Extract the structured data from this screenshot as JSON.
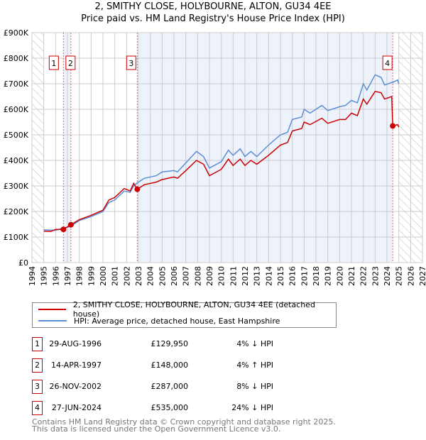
{
  "title": "2, SMITHY CLOSE, HOLYBOURNE, ALTON, GU34 4EE",
  "subtitle": "Price paid vs. HM Land Registry's House Price Index (HPI)",
  "chart_data": {
    "type": "line",
    "title": "2, SMITHY CLOSE, HOLYBOURNE, ALTON, GU34 4EE",
    "subtitle": "Price paid vs. HM Land Registry's House Price Index (HPI)",
    "xlim": [
      1994,
      2027
    ],
    "ylim": [
      0,
      900000
    ],
    "x_ticks": [
      "1994",
      "1995",
      "1996",
      "1997",
      "1998",
      "1999",
      "2000",
      "2001",
      "2002",
      "2003",
      "2004",
      "2005",
      "2006",
      "2007",
      "2008",
      "2009",
      "2010",
      "2011",
      "2012",
      "2013",
      "2014",
      "2015",
      "2016",
      "2017",
      "2018",
      "2019",
      "2020",
      "2021",
      "2022",
      "2023",
      "2024",
      "2025",
      "2026",
      "2027"
    ],
    "y_ticks": [
      "£0",
      "£100K",
      "£200K",
      "£300K",
      "£400K",
      "£500K",
      "£600K",
      "£700K",
      "£800K",
      "£900K"
    ],
    "grid": true,
    "series": [
      {
        "name": "2, SMITHY CLOSE, HOLYBOURNE, ALTON, GU34 4EE (detached house)",
        "color": "#cc0000",
        "x": [
          1995,
          1995.6,
          1996,
          1996.66,
          1997.29,
          1998,
          1999,
          2000,
          2000.5,
          2001,
          2001.8,
          2002.3,
          2002.6,
          2002.9,
          2003.5,
          2004.5,
          2005,
          2006,
          2006.3,
          2007,
          2007.9,
          2008.5,
          2009,
          2010,
          2010.6,
          2011,
          2011.6,
          2012,
          2012.5,
          2013,
          2014,
          2015,
          2015.6,
          2016,
          2016.8,
          2017,
          2017.5,
          2018.5,
          2019,
          2020,
          2020.5,
          2021,
          2021.5,
          2022,
          2022.3,
          2023,
          2023.5,
          2023.8,
          2024.4,
          2024.49,
          2024.9,
          2025
        ],
        "y": [
          123000,
          122000,
          130000,
          129950,
          148000,
          168000,
          185000,
          205000,
          245000,
          255000,
          290000,
          280000,
          310000,
          287000,
          305000,
          315000,
          325000,
          335000,
          330000,
          360000,
          400000,
          385000,
          340000,
          365000,
          405000,
          380000,
          405000,
          380000,
          400000,
          385000,
          420000,
          460000,
          470000,
          515000,
          525000,
          550000,
          540000,
          565000,
          545000,
          560000,
          560000,
          585000,
          575000,
          640000,
          620000,
          670000,
          665000,
          640000,
          650000,
          535000,
          540000,
          530000
        ]
      },
      {
        "name": "HPI: Average price, detached house, East Hampshire",
        "color": "#5b8fd6",
        "x": [
          1995,
          1995.6,
          1996,
          1996.66,
          1997.29,
          1998,
          1999,
          2000,
          2000.5,
          2001,
          2001.8,
          2002.3,
          2002.6,
          2002.9,
          2003.5,
          2004.5,
          2005,
          2006,
          2006.3,
          2007,
          2007.9,
          2008.5,
          2009,
          2010,
          2010.6,
          2011,
          2011.6,
          2012,
          2012.5,
          2013,
          2014,
          2015,
          2015.6,
          2016,
          2016.8,
          2017,
          2017.5,
          2018.5,
          2019,
          2020,
          2020.5,
          2021,
          2021.5,
          2022,
          2022.3,
          2023,
          2023.5,
          2023.8,
          2024.4,
          2024.49,
          2024.9,
          2025
        ],
        "y": [
          128000,
          127000,
          126000,
          135000,
          142000,
          165000,
          180000,
          200000,
          235000,
          245000,
          280000,
          275000,
          300000,
          312000,
          330000,
          340000,
          355000,
          360000,
          355000,
          390000,
          435000,
          415000,
          370000,
          395000,
          440000,
          420000,
          445000,
          415000,
          435000,
          415000,
          460000,
          500000,
          510000,
          560000,
          570000,
          600000,
          585000,
          615000,
          595000,
          610000,
          615000,
          635000,
          625000,
          700000,
          675000,
          735000,
          725000,
          695000,
          705000,
          705000,
          715000,
          700000
        ]
      }
    ],
    "sales": [
      {
        "label": "1",
        "x": 1996.66,
        "y": 129950
      },
      {
        "label": "2",
        "x": 1997.29,
        "y": 148000
      },
      {
        "label": "3",
        "x": 2002.9,
        "y": 287000
      },
      {
        "label": "4",
        "x": 2024.49,
        "y": 535000
      }
    ],
    "legend_placement": "below"
  },
  "legend": [
    {
      "label": "2, SMITHY CLOSE, HOLYBOURNE, ALTON, GU34 4EE (detached house)",
      "color": "#cc0000"
    },
    {
      "label": "HPI: Average price, detached house, East Hampshire",
      "color": "#5b8fd6"
    }
  ],
  "transactions": [
    {
      "num": "1",
      "date": "29-AUG-1996",
      "price": "£129,950",
      "hpi": "4% ↓ HPI"
    },
    {
      "num": "2",
      "date": "14-APR-1997",
      "price": "£148,000",
      "hpi": "4% ↑ HPI"
    },
    {
      "num": "3",
      "date": "26-NOV-2002",
      "price": "£287,000",
      "hpi": "8% ↓ HPI"
    },
    {
      "num": "4",
      "date": "27-JUN-2024",
      "price": "£535,000",
      "hpi": "24% ↓ HPI"
    }
  ],
  "footer": [
    "Contains HM Land Registry data © Crown copyright and database right 2025.",
    "This data is licensed under the Open Government Licence v3.0."
  ]
}
